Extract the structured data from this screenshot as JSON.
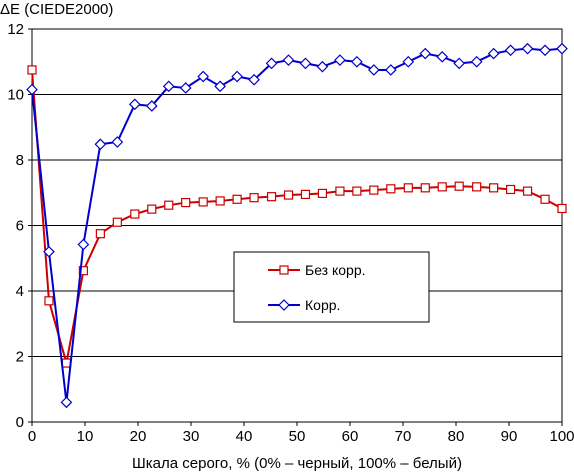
{
  "chart_data": {
    "type": "line",
    "title": "",
    "ylabel": "ΔE (CIEDE2000)",
    "xlabel": "Шкала серого, % (0% – черный, 100% – белый)",
    "xlim": [
      0,
      100
    ],
    "ylim": [
      0,
      12
    ],
    "xticks": [
      0,
      10,
      20,
      30,
      40,
      50,
      60,
      70,
      80,
      90,
      100
    ],
    "yticks": [
      0,
      2,
      4,
      6,
      8,
      10,
      12
    ],
    "grid": "horizontal",
    "legend_position": "center-right",
    "x": [
      0,
      3.2,
      6.5,
      9.7,
      12.9,
      16.1,
      19.4,
      22.6,
      25.8,
      29.0,
      32.3,
      35.5,
      38.7,
      41.9,
      45.2,
      48.4,
      51.6,
      54.8,
      58.1,
      61.3,
      64.5,
      67.7,
      71.0,
      74.2,
      77.4,
      80.6,
      83.9,
      87.1,
      90.3,
      93.5,
      96.8,
      100
    ],
    "series": [
      {
        "name": "Без корр.",
        "color": "#cc0000",
        "marker": "square",
        "values": [
          10.75,
          3.7,
          1.8,
          4.62,
          5.75,
          6.1,
          6.35,
          6.5,
          6.62,
          6.7,
          6.72,
          6.75,
          6.8,
          6.85,
          6.88,
          6.93,
          6.95,
          6.98,
          7.05,
          7.05,
          7.08,
          7.12,
          7.15,
          7.15,
          7.18,
          7.2,
          7.18,
          7.15,
          7.1,
          7.05,
          6.8,
          6.52
        ]
      },
      {
        "name": "Корр.",
        "color": "#0000cc",
        "marker": "diamond",
        "values": [
          10.15,
          5.2,
          0.6,
          5.42,
          8.48,
          8.55,
          9.7,
          9.65,
          10.25,
          10.2,
          10.55,
          10.25,
          10.55,
          10.45,
          10.95,
          11.05,
          10.95,
          10.85,
          11.05,
          11.0,
          10.75,
          10.75,
          11.0,
          11.25,
          11.15,
          10.95,
          11.0,
          11.25,
          11.35,
          11.4,
          11.35,
          11.4
        ]
      }
    ]
  }
}
